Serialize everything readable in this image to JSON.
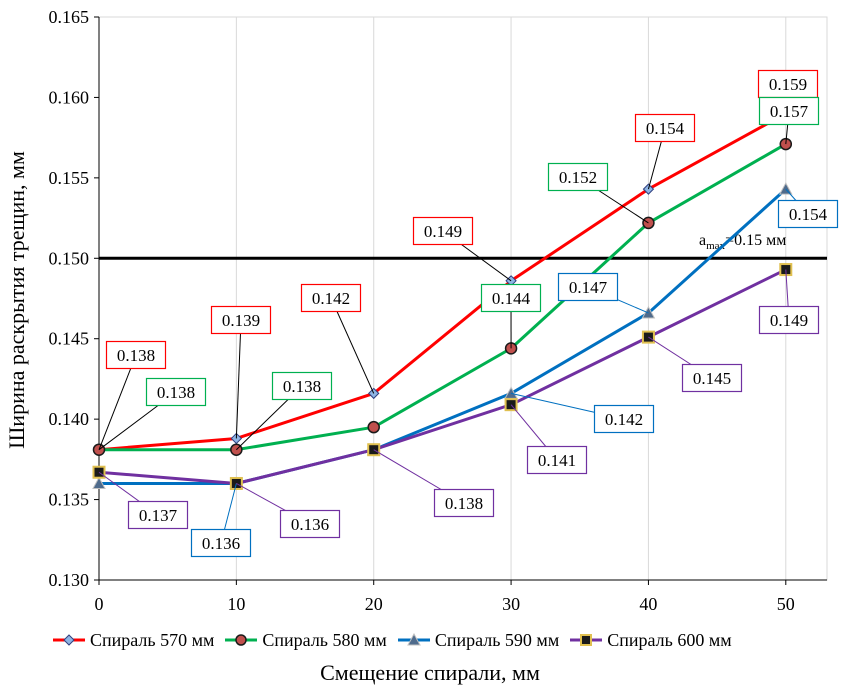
{
  "chart_data": {
    "type": "line",
    "xlabel": "Смещение спирали, мм",
    "ylabel": "Ширина раскрытия трещин, мм",
    "x": [
      0,
      10,
      20,
      30,
      40,
      50
    ],
    "xlim": [
      0,
      53
    ],
    "ylim": [
      0.13,
      0.165
    ],
    "xticks": [
      "0",
      "10",
      "20",
      "30",
      "40",
      "50"
    ],
    "yticks": [
      "0.130",
      "0.135",
      "0.140",
      "0.145",
      "0.150",
      "0.155",
      "0.160",
      "0.165"
    ],
    "grid": "vertical",
    "legend_position": "bottom",
    "series": [
      {
        "name": "Спираль 570 мм",
        "color": "#ff0000",
        "marker": "diamond",
        "marker_fill": "#8eb4e3",
        "values": [
          0.1381,
          0.1388,
          0.1416,
          0.1486,
          0.1543,
          0.159
        ],
        "labels": [
          "0.138",
          "0.139",
          "0.142",
          "",
          "0.154",
          "0.159"
        ]
      },
      {
        "name": "Спираль 580 мм",
        "color": "#00b050",
        "marker": "circle",
        "marker_fill": "#c0504d",
        "values": [
          0.1381,
          0.1381,
          0.1395,
          0.1444,
          0.1522,
          0.1571
        ],
        "labels": [
          "0.138",
          "0.138",
          "",
          "0.144",
          "0.152",
          "0.157"
        ]
      },
      {
        "name": "Спираль 590 мм",
        "color": "#0070c0",
        "marker": "triangle",
        "marker_fill": "#4f6b8c",
        "values": [
          0.136,
          0.136,
          0.1381,
          0.1416,
          0.1466,
          0.1543
        ],
        "labels": [
          "",
          "0.136",
          "",
          "0.142",
          "0.147",
          "0.154"
        ]
      },
      {
        "name": "Спираль 600 мм",
        "color": "#7030a0",
        "marker": "square",
        "marker_fill": "#e0c050",
        "values": [
          0.1367,
          0.136,
          0.1381,
          0.1409,
          0.1451,
          0.1493
        ],
        "labels": [
          "0.137",
          "0.136",
          "0.138",
          "0.141",
          "0.145",
          "0.149"
        ]
      }
    ],
    "extra_label": {
      "series": 0,
      "index": 3,
      "text": "0.149"
    },
    "reference_line": {
      "y": 0.15,
      "label_main": "a",
      "label_sub": "max",
      "label_rest": "=0.15 мм"
    }
  }
}
